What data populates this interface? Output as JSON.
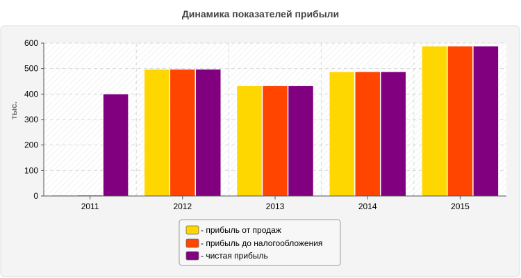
{
  "chart_data": {
    "type": "bar",
    "title": "Динамика показателей прибыли",
    "xlabel": "",
    "ylabel": "тыс.",
    "categories": [
      "2011",
      "2012",
      "2013",
      "2014",
      "2015"
    ],
    "ylim": [
      0,
      600
    ],
    "yticks": [
      0,
      100,
      200,
      300,
      400,
      500,
      600
    ],
    "grid": true,
    "legend_position": "bottom",
    "series": [
      {
        "name": "- прибыль от продаж",
        "color": "#FFD700",
        "values": [
          3,
          497,
          432,
          487,
          588
        ]
      },
      {
        "name": "- прибыль до налогообложения",
        "color": "#FF4500",
        "values": [
          3,
          497,
          432,
          487,
          588
        ]
      },
      {
        "name": "- чистая прибыль",
        "color": "#800080",
        "values": [
          400,
          497,
          432,
          487,
          588
        ]
      }
    ]
  }
}
